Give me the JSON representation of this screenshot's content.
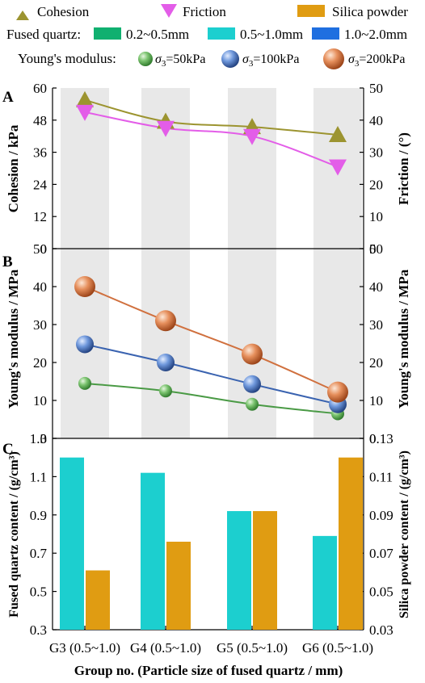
{
  "colors": {
    "cohesion": "#9c9430",
    "friction": "#e35de8",
    "silica": "#e09c12",
    "fq_02_05": "#10b070",
    "fq_05_10": "#1ccfcf",
    "fq_10_20": "#1f6fe0",
    "sigma50": "#4a9a45",
    "sigma100": "#3a63b0",
    "sigma200": "#d0703e",
    "shade": "#e8e8e8"
  },
  "legend": {
    "cohesion": "Cohesion",
    "friction": "Friction",
    "silica": "Silica powder",
    "fused_quartz_label": "Fused quartz:",
    "fq1": "0.2~0.5mm",
    "fq2": "0.5~1.0mm",
    "fq3": "1.0~2.0mm",
    "youngs_label": "Young's modulus:",
    "sigma_symbol": "σ",
    "sigma_sub": "3",
    "s1": "=50kPa",
    "s2": "=100kPa",
    "s3": "=200kPa"
  },
  "panel_labels": [
    "A",
    "B",
    "C"
  ],
  "xlabel": "Group no. (Particle size of fused quartz / mm)",
  "chart_data": [
    {
      "panel": "A",
      "type": "line",
      "categories": [
        "G3 (0.5~1.0)",
        "G4 (0.5~1.0)",
        "G5 (0.5~1.0)",
        "G6 (0.5~1.0)"
      ],
      "ylabel_left": "Cohesion / kPa",
      "ylabel_right": "Friction / (°)",
      "ylim_left": [
        0,
        60
      ],
      "yticks_left": [
        0,
        12,
        24,
        36,
        48,
        60
      ],
      "ylim_right": [
        0,
        50
      ],
      "yticks_right": [
        0,
        10,
        20,
        30,
        40,
        50
      ],
      "series": [
        {
          "name": "Cohesion",
          "axis": "left",
          "values": [
            55.5,
            47.5,
            45.5,
            42.5
          ]
        },
        {
          "name": "Friction",
          "axis": "right",
          "values": [
            42.5,
            37.5,
            35.0,
            25.5
          ]
        }
      ]
    },
    {
      "panel": "B",
      "type": "line",
      "categories": [
        "G3 (0.5~1.0)",
        "G4 (0.5~1.0)",
        "G5 (0.5~1.0)",
        "G6 (0.5~1.0)"
      ],
      "ylabel_left": "Young's modulus / MPa",
      "ylabel_right": "Young's modulus / MPa",
      "ylim": [
        0,
        50
      ],
      "yticks": [
        0,
        10,
        20,
        30,
        40,
        50
      ],
      "series": [
        {
          "name": "σ3=50kPa",
          "values": [
            14.5,
            12.5,
            9.0,
            6.5
          ]
        },
        {
          "name": "σ3=100kPa",
          "values": [
            24.8,
            20.0,
            14.3,
            9.0
          ]
        },
        {
          "name": "σ3=200kPa",
          "values": [
            40.0,
            31.0,
            22.2,
            12.2
          ]
        }
      ]
    },
    {
      "panel": "C",
      "type": "bar",
      "categories": [
        "G3 (0.5~1.0)",
        "G4 (0.5~1.0)",
        "G5 (0.5~1.0)",
        "G6 (0.5~1.0)"
      ],
      "ylabel_left": "Fused quartz content / (g/cm³)",
      "ylabel_right": "Silica powder content / (g/cm³)",
      "ylim_left": [
        0.3,
        1.3
      ],
      "yticks_left": [
        "0.3",
        "0.5",
        "0.7",
        "0.9",
        "1.1",
        "1.3"
      ],
      "ylim_right": [
        0.03,
        0.13
      ],
      "yticks_right": [
        "0.03",
        "0.05",
        "0.07",
        "0.09",
        "0.11",
        "0.13"
      ],
      "series": [
        {
          "name": "Fused quartz 0.5~1.0mm",
          "axis": "left",
          "values": [
            1.2,
            1.12,
            0.92,
            0.79
          ]
        },
        {
          "name": "Silica powder",
          "axis": "right",
          "values": [
            0.061,
            0.076,
            0.092,
            0.12
          ]
        }
      ]
    }
  ]
}
